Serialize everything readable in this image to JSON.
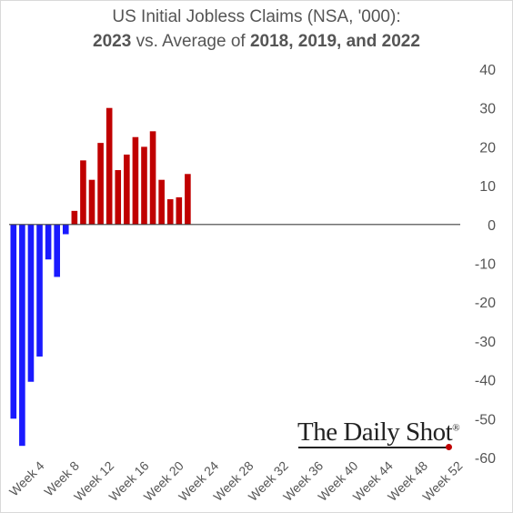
{
  "chart_data": {
    "type": "bar",
    "title_line1": "US Initial Jobless Claims (NSA, '000):",
    "title_line2_parts": [
      {
        "text": "2023",
        "bold": true
      },
      {
        "text": " vs. Average of ",
        "bold": false
      },
      {
        "text": "2018, 2019, and 2022",
        "bold": true
      }
    ],
    "xlabel": "",
    "ylabel": "",
    "ylim": [
      -60,
      40
    ],
    "yticks": [
      40,
      30,
      20,
      10,
      0,
      -10,
      -20,
      -30,
      -40,
      -50,
      -60
    ],
    "x_tick_labels": [
      "Week 4",
      "Week 8",
      "Week 12",
      "Week 16",
      "Week 20",
      "Week 24",
      "Week 28",
      "Week 32",
      "Week 36",
      "Week 40",
      "Week 44",
      "Week 48",
      "Week 52"
    ],
    "x_tick_weeks": [
      4,
      8,
      12,
      16,
      20,
      24,
      28,
      32,
      36,
      40,
      44,
      48,
      52
    ],
    "weeks": [
      1,
      2,
      3,
      4,
      5,
      6,
      7,
      8,
      9,
      10,
      11,
      12,
      13,
      14,
      15,
      16,
      17,
      18,
      19,
      20,
      21
    ],
    "values": [
      -50,
      -57,
      -40.5,
      -34,
      -9,
      -13.5,
      -2.5,
      3.5,
      16.5,
      11.5,
      21,
      30,
      14,
      18,
      22.5,
      20,
      24,
      11.5,
      6.5,
      7,
      13
    ],
    "colors": {
      "positive": "#c00000",
      "negative": "#1a1aff",
      "axis": "#404040"
    },
    "grid": false,
    "legend": "none"
  },
  "watermark": {
    "text": "The Daily Shot",
    "reg": "®"
  }
}
